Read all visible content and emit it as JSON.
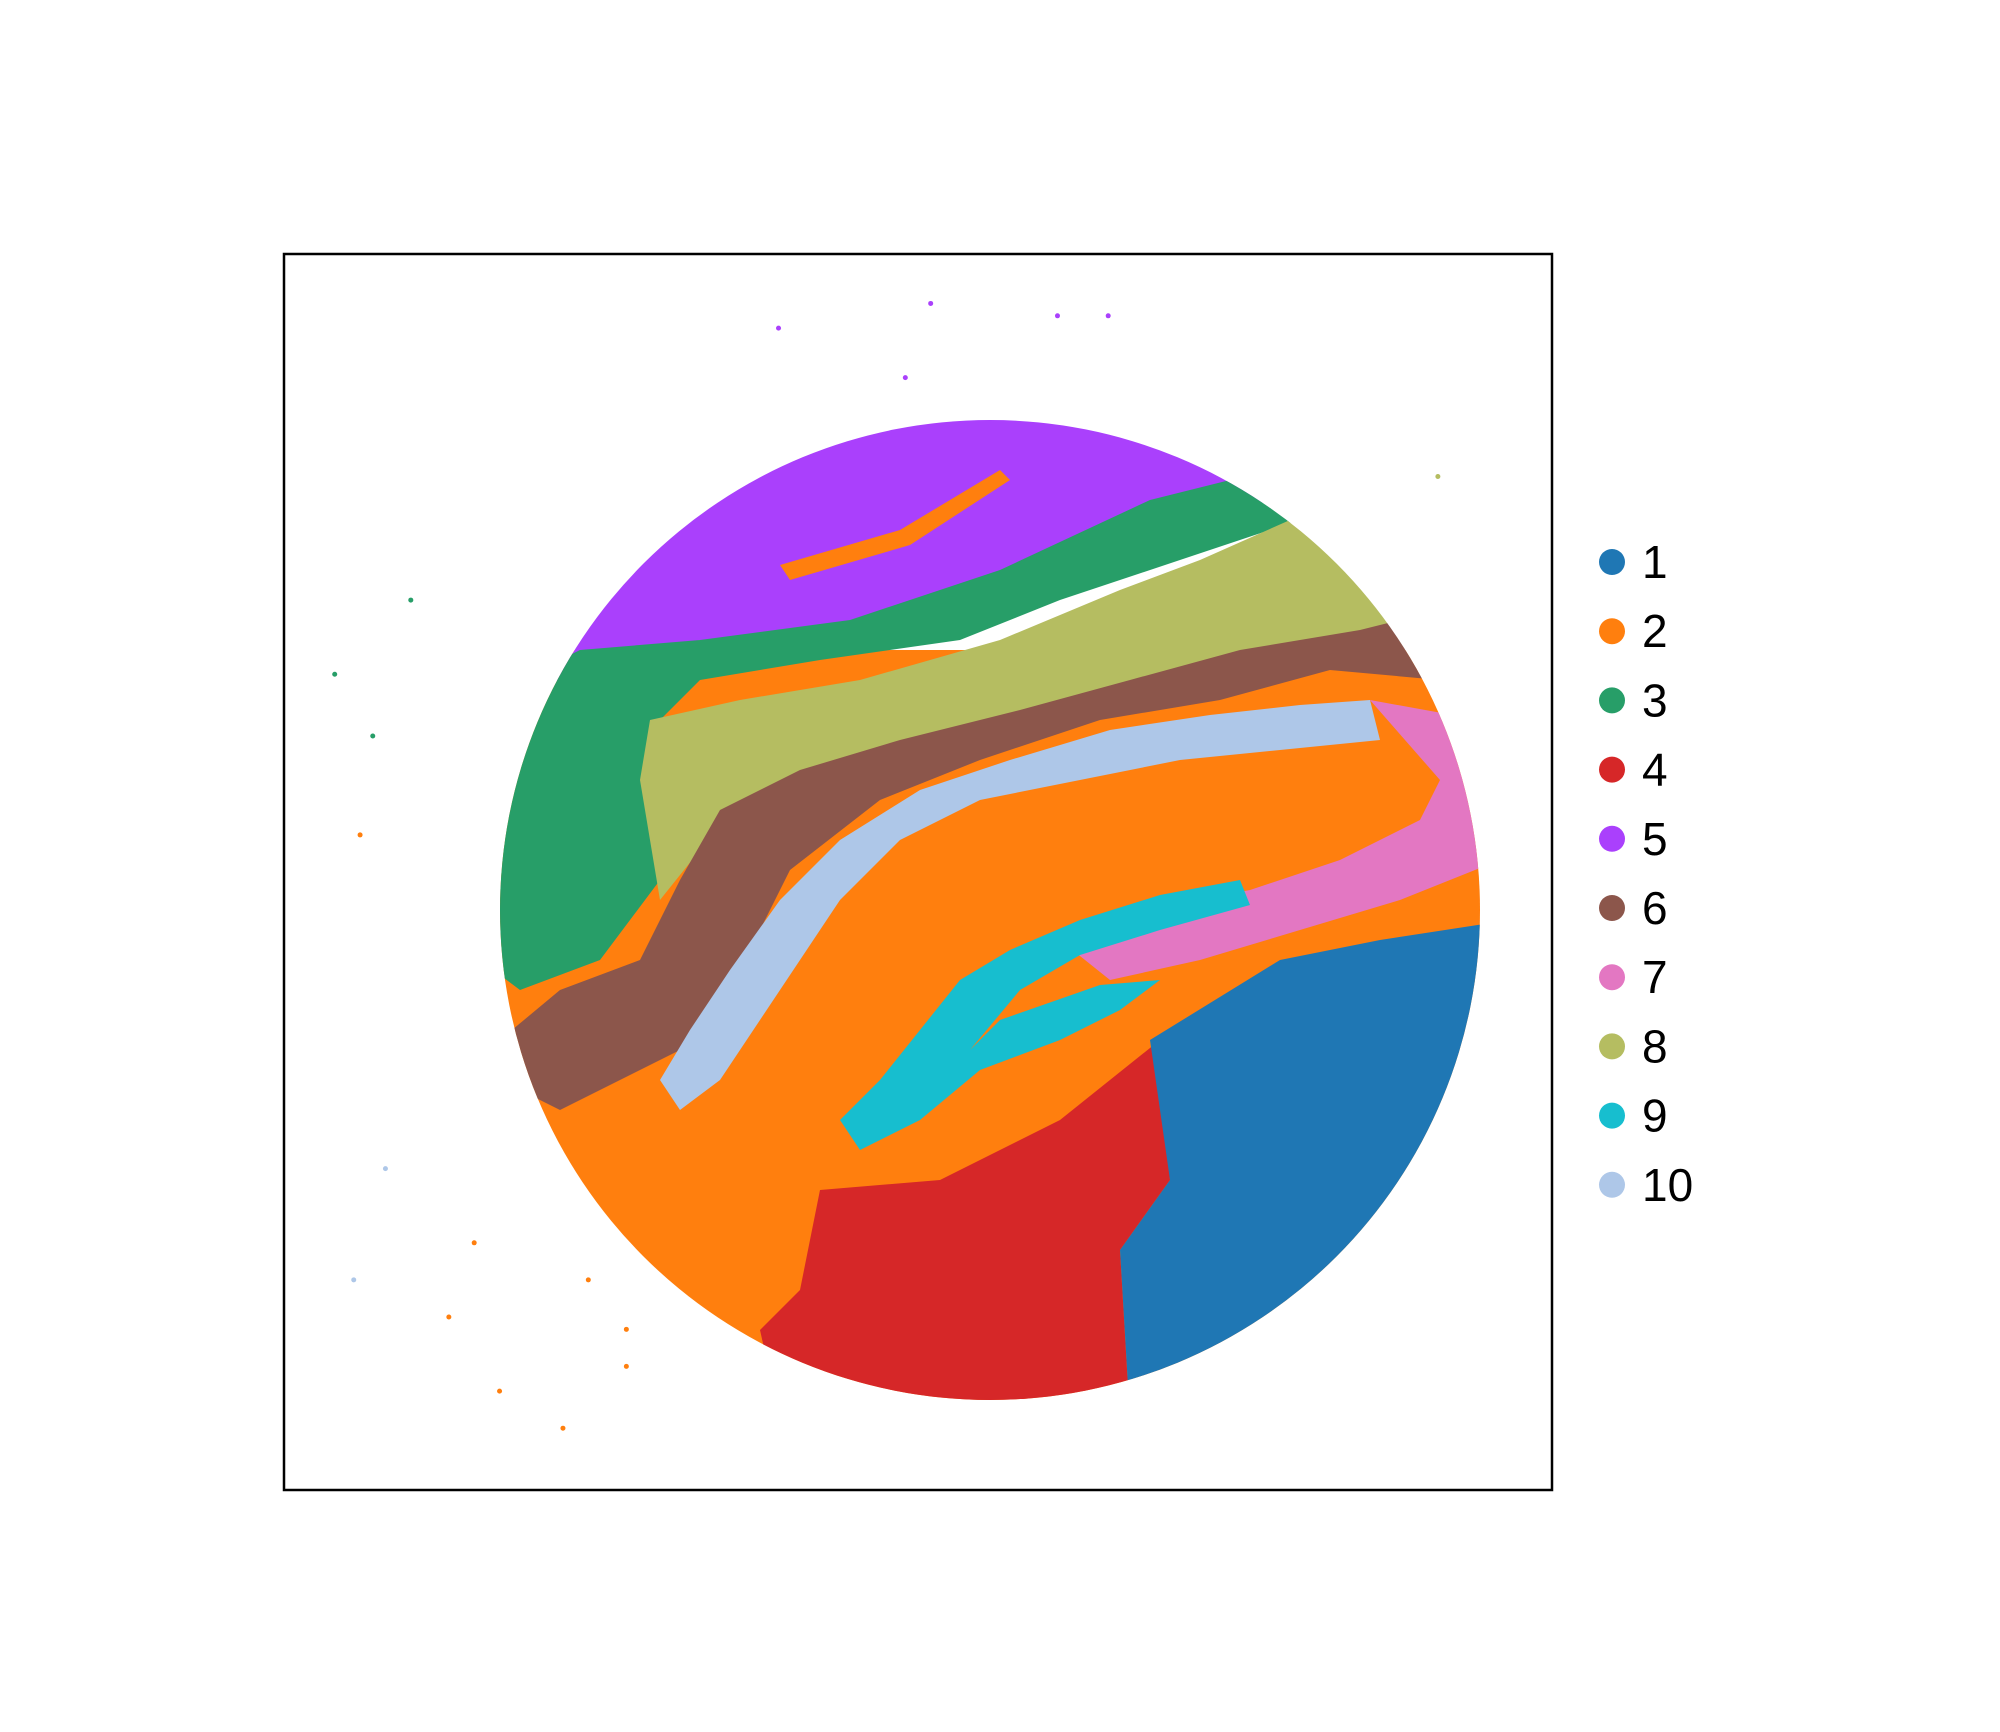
{
  "chart_data": {
    "type": "scatter",
    "title": "",
    "xlabel": "",
    "ylabel": "",
    "axes": "hidden",
    "grid": false,
    "legend_position": "right",
    "clusters": [
      {
        "name": "1",
        "color": "#1f77b4"
      },
      {
        "name": "2",
        "color": "#ff7f0e"
      },
      {
        "name": "3",
        "color": "#279e68"
      },
      {
        "name": "4",
        "color": "#d62728"
      },
      {
        "name": "5",
        "color": "#aa40fc"
      },
      {
        "name": "6",
        "color": "#8c564b"
      },
      {
        "name": "7",
        "color": "#e377c2"
      },
      {
        "name": "8",
        "color": "#b5bd61"
      },
      {
        "name": "9",
        "color": "#17becf"
      },
      {
        "name": "10",
        "color": "#aec7e8"
      }
    ],
    "outlier_points": [
      {
        "cluster": "5",
        "x": 0.39,
        "y": 0.06
      },
      {
        "cluster": "5",
        "x": 0.51,
        "y": 0.04
      },
      {
        "cluster": "5",
        "x": 0.61,
        "y": 0.05
      },
      {
        "cluster": "5",
        "x": 0.65,
        "y": 0.05
      },
      {
        "cluster": "5",
        "x": 0.49,
        "y": 0.1
      },
      {
        "cluster": "8",
        "x": 0.91,
        "y": 0.18
      },
      {
        "cluster": "3",
        "x": 0.1,
        "y": 0.28
      },
      {
        "cluster": "3",
        "x": 0.04,
        "y": 0.34
      },
      {
        "cluster": "3",
        "x": 0.07,
        "y": 0.39
      },
      {
        "cluster": "2",
        "x": 0.06,
        "y": 0.47
      },
      {
        "cluster": "10",
        "x": 0.08,
        "y": 0.74
      },
      {
        "cluster": "10",
        "x": 0.055,
        "y": 0.83
      },
      {
        "cluster": "2",
        "x": 0.15,
        "y": 0.8
      },
      {
        "cluster": "2",
        "x": 0.13,
        "y": 0.86
      },
      {
        "cluster": "2",
        "x": 0.24,
        "y": 0.83
      },
      {
        "cluster": "2",
        "x": 0.27,
        "y": 0.87
      },
      {
        "cluster": "2",
        "x": 0.27,
        "y": 0.9
      },
      {
        "cluster": "2",
        "x": 0.17,
        "y": 0.92
      },
      {
        "cluster": "2",
        "x": 0.22,
        "y": 0.95
      }
    ]
  }
}
